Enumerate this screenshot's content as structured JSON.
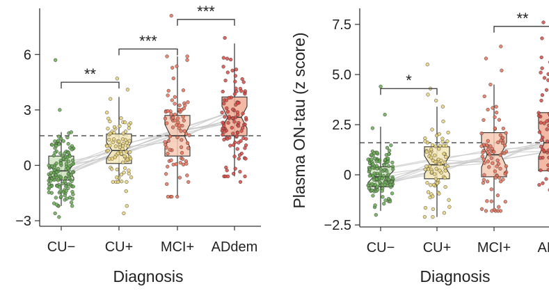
{
  "chart_data": [
    {
      "type": "box",
      "panel": "left",
      "xlabel": "Diagnosis",
      "ylabel": "",
      "ylim": [
        -3.3,
        8.5
      ],
      "yticks": [
        -3,
        0,
        3,
        6
      ],
      "ytick_labels": [
        "−3",
        "0",
        "3",
        "6"
      ],
      "reference_line": 1.6,
      "categories": [
        "CU−",
        "CU+",
        "MCI+",
        "ADdem"
      ],
      "colors": [
        "#6aaa55",
        "#e8d27a",
        "#e8735a",
        "#d94a44"
      ],
      "box_fills": [
        "#cfe6c0",
        "#f6e7b8",
        "#f7c9b4",
        "#f2ad95"
      ],
      "groups": [
        {
          "category": "CU−",
          "q1": -0.8,
          "median": -0.3,
          "q3": 0.5,
          "whisker_low": -2.2,
          "whisker_high": 1.8,
          "n_points": 140,
          "outliers": [
            5.7,
            3.0,
            -2.6,
            -2.8
          ]
        },
        {
          "category": "CU+",
          "q1": 0.1,
          "median": 0.8,
          "q3": 1.7,
          "whisker_low": -0.9,
          "whisker_high": 3.7,
          "n_points": 75,
          "outliers": [
            4.7,
            4.1,
            -1.4,
            -2.2,
            -2.6
          ]
        },
        {
          "category": "MCI+",
          "q1": 0.5,
          "median": 1.6,
          "q3": 2.7,
          "whisker_low": -1.7,
          "whisker_high": 5.9,
          "n_points": 80,
          "outliers": [
            8.1,
            5.7
          ]
        },
        {
          "category": "ADdem",
          "q1": 1.6,
          "median": 2.6,
          "q3": 3.7,
          "whisker_low": -0.6,
          "whisker_high": 6.6,
          "n_points": 100,
          "outliers": [
            6.9,
            -0.9
          ]
        }
      ],
      "significance": [
        {
          "from": 0,
          "to": 1,
          "y": 4.5,
          "label": "**"
        },
        {
          "from": 1,
          "to": 2,
          "y": 6.3,
          "label": "***"
        },
        {
          "from": 2,
          "to": 3,
          "y": 7.9,
          "label": "***"
        }
      ]
    },
    {
      "type": "box",
      "panel": "right",
      "xlabel": "Diagnosis",
      "ylabel": "Plasma ON-tau (z score)",
      "ylim": [
        -2.6,
        8.3
      ],
      "yticks": [
        -2.5,
        0,
        2.5,
        5.0,
        7.5
      ],
      "ytick_labels": [
        "−2.5",
        "0",
        "2.5",
        "5.0",
        "7.5"
      ],
      "reference_line": 1.6,
      "categories": [
        "CU−",
        "CU+",
        "MCI+",
        "ADdem"
      ],
      "category_labels_visible": [
        "CU−",
        "CU+",
        "MCI+",
        "ADd"
      ],
      "colors": [
        "#6aaa55",
        "#e8d27a",
        "#e8735a",
        "#d94a44"
      ],
      "box_fills": [
        "#cfe6c0",
        "#f6e7b8",
        "#f7c9b4",
        "#f2ad95"
      ],
      "groups": [
        {
          "category": "CU−",
          "q1": -0.6,
          "median": -0.1,
          "q3": 0.4,
          "whisker_low": -1.8,
          "whisker_high": 2.4,
          "n_points": 140,
          "outliers": [
            4.4,
            3.0,
            -2.0
          ]
        },
        {
          "category": "CU+",
          "q1": -0.2,
          "median": 0.5,
          "q3": 1.4,
          "whisker_low": -2.1,
          "whisker_high": 3.4,
          "n_points": 75,
          "outliers": [
            5.5,
            4.3,
            4.0,
            3.7,
            -1.9
          ]
        },
        {
          "category": "MCI+",
          "q1": -0.1,
          "median": 1.0,
          "q3": 2.1,
          "whisker_low": -1.8,
          "whisker_high": 4.5,
          "n_points": 80,
          "outliers": [
            6.4,
            5.8,
            5.2,
            -1.6
          ]
        },
        {
          "category": "ADdem",
          "q1": 0.2,
          "median": 1.6,
          "q3": 3.1,
          "whisker_low": -1.5,
          "whisker_high": 7.9,
          "n_points": 100,
          "outliers": [
            7.6,
            7.2
          ]
        }
      ],
      "significance": [
        {
          "from": 0,
          "to": 1,
          "y": 4.3,
          "label": "*"
        },
        {
          "from": 2,
          "to": 3,
          "y": 7.4,
          "label": "**"
        }
      ]
    }
  ]
}
